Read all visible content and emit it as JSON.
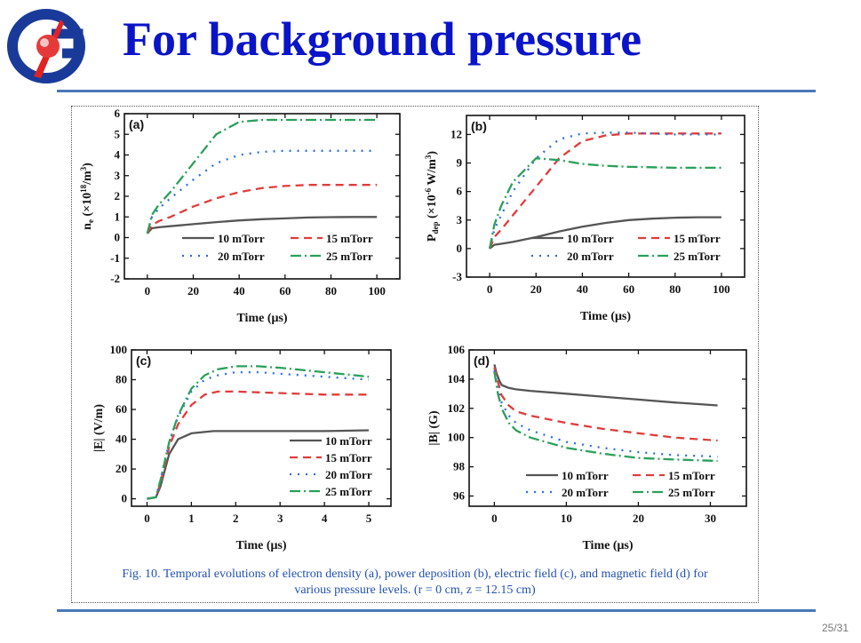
{
  "slide": {
    "title": "For background pressure",
    "caption_line1": "Fig. 10. Temporal evolutions of electron density (a), power deposition (b), electric field (c), and magnetic field (d) for",
    "caption_line2": "various pressure levels. (r = 0 cm, z = 12.15 cm)",
    "page_number": "25/31"
  },
  "colors": {
    "title": "#0a14c8",
    "rule": "#4a78b8",
    "caption": "#2250b4"
  },
  "chart_data": [
    {
      "id": "a",
      "type": "line",
      "panel_label": "(a)",
      "xlabel": "Time (μs)",
      "ylabel": "n_e (×10^18/m^3)",
      "xlim": [
        -10,
        110
      ],
      "ylim": [
        -2,
        6
      ],
      "xticks": [
        0,
        20,
        40,
        60,
        80,
        100
      ],
      "yticks": [
        -2,
        -1,
        0,
        1,
        2,
        3,
        4,
        5,
        6
      ],
      "series": [
        {
          "name": "10 mTorr",
          "color": "#555555",
          "dash": "",
          "x": [
            0,
            2,
            5,
            10,
            20,
            30,
            40,
            50,
            60,
            70,
            80,
            90,
            100
          ],
          "y": [
            0.2,
            0.45,
            0.5,
            0.55,
            0.65,
            0.75,
            0.83,
            0.89,
            0.93,
            0.97,
            0.99,
            1.0,
            1.0
          ]
        },
        {
          "name": "15 mTorr",
          "color": "#e03c3c",
          "dash": "9 6",
          "x": [
            0,
            2,
            5,
            10,
            20,
            30,
            40,
            50,
            60,
            70,
            80,
            90,
            100
          ],
          "y": [
            0.2,
            0.6,
            0.8,
            1.0,
            1.5,
            1.9,
            2.2,
            2.4,
            2.5,
            2.55,
            2.55,
            2.55,
            2.55
          ]
        },
        {
          "name": "20 mTorr",
          "color": "#2a6ee0",
          "dash": "2 7",
          "x": [
            0,
            2,
            5,
            10,
            20,
            30,
            40,
            50,
            60,
            70,
            80,
            90,
            100
          ],
          "y": [
            0.2,
            1.0,
            1.4,
            1.9,
            2.8,
            3.6,
            4.0,
            4.15,
            4.2,
            4.2,
            4.2,
            4.2,
            4.2
          ]
        },
        {
          "name": "25 mTorr",
          "color": "#2aa05a",
          "dash": "12 4 2 4",
          "x": [
            0,
            2,
            5,
            10,
            20,
            30,
            40,
            50,
            60,
            70,
            80,
            90,
            100
          ],
          "y": [
            0.2,
            1.1,
            1.6,
            2.2,
            3.6,
            5.0,
            5.6,
            5.7,
            5.7,
            5.7,
            5.7,
            5.7,
            5.7
          ]
        }
      ]
    },
    {
      "id": "b",
      "type": "line",
      "panel_label": "(b)",
      "xlabel": "Time (μs)",
      "ylabel": "P_dep (×10^-6 W/m^3)",
      "xlim": [
        -10,
        110
      ],
      "ylim": [
        -3,
        14
      ],
      "xticks": [
        0,
        20,
        40,
        60,
        80,
        100
      ],
      "yticks": [
        -3,
        0,
        3,
        6,
        9,
        12
      ],
      "series": [
        {
          "name": "10 mTorr",
          "color": "#555555",
          "dash": "",
          "x": [
            0,
            2,
            5,
            10,
            20,
            30,
            40,
            50,
            60,
            70,
            80,
            90,
            100
          ],
          "y": [
            0,
            0.4,
            0.5,
            0.7,
            1.2,
            1.8,
            2.3,
            2.7,
            3.0,
            3.15,
            3.25,
            3.3,
            3.3
          ]
        },
        {
          "name": "15 mTorr",
          "color": "#e03c3c",
          "dash": "9 6",
          "x": [
            0,
            2,
            5,
            10,
            20,
            30,
            40,
            50,
            60,
            70,
            80,
            90,
            100
          ],
          "y": [
            0,
            1.2,
            2.0,
            3.5,
            6.5,
            9.5,
            11.3,
            11.9,
            12.1,
            12.1,
            12.1,
            12.1,
            12.1
          ]
        },
        {
          "name": "20 mTorr",
          "color": "#2a6ee0",
          "dash": "2 7",
          "x": [
            0,
            2,
            5,
            10,
            20,
            30,
            40,
            50,
            60,
            70,
            80,
            90,
            100
          ],
          "y": [
            0,
            2.0,
            3.5,
            6.0,
            9.5,
            11.5,
            12.1,
            12.2,
            12.2,
            12.1,
            12.0,
            12.0,
            12.0
          ]
        },
        {
          "name": "25 mTorr",
          "color": "#2aa05a",
          "dash": "12 4 2 4",
          "x": [
            0,
            2,
            5,
            10,
            20,
            30,
            40,
            50,
            60,
            70,
            80,
            90,
            100
          ],
          "y": [
            0,
            2.5,
            4.5,
            7.0,
            9.5,
            9.3,
            8.9,
            8.7,
            8.6,
            8.55,
            8.5,
            8.5,
            8.5
          ]
        }
      ]
    },
    {
      "id": "c",
      "type": "line",
      "panel_label": "(c)",
      "xlabel": "Time (μs)",
      "ylabel": "|E| (V/m)",
      "xlim": [
        -0.35,
        5.5
      ],
      "ylim": [
        -5,
        100
      ],
      "xticks": [
        0,
        1,
        2,
        3,
        4,
        5
      ],
      "yticks": [
        0,
        20,
        40,
        60,
        80,
        100
      ],
      "series": [
        {
          "name": "10 mTorr",
          "color": "#555555",
          "dash": "",
          "x": [
            0,
            0.2,
            0.3,
            0.5,
            0.7,
            1.0,
            1.5,
            2,
            3,
            4,
            5
          ],
          "y": [
            0,
            1,
            8,
            30,
            40,
            44,
            45.5,
            45.5,
            45.5,
            45.5,
            46
          ]
        },
        {
          "name": "15 mTorr",
          "color": "#e03c3c",
          "dash": "9 6",
          "x": [
            0,
            0.2,
            0.3,
            0.5,
            0.7,
            1.0,
            1.3,
            1.6,
            2,
            3,
            4,
            5
          ],
          "y": [
            0,
            1,
            10,
            35,
            50,
            63,
            70,
            72,
            72,
            71,
            70,
            70
          ]
        },
        {
          "name": "20 mTorr",
          "color": "#2a6ee0",
          "dash": "2 7",
          "x": [
            0,
            0.2,
            0.3,
            0.5,
            0.7,
            1.0,
            1.3,
            1.6,
            2,
            2.5,
            3,
            4,
            5
          ],
          "y": [
            0,
            1,
            12,
            38,
            55,
            72,
            80,
            83,
            85,
            85,
            84,
            82,
            80
          ]
        },
        {
          "name": "25 mTorr",
          "color": "#2aa05a",
          "dash": "12 4 2 4",
          "x": [
            0,
            0.2,
            0.3,
            0.5,
            0.7,
            1.0,
            1.3,
            1.6,
            2,
            2.5,
            3,
            4,
            5
          ],
          "y": [
            0,
            1,
            12,
            38,
            56,
            74,
            83,
            87,
            89,
            89,
            88,
            85,
            82
          ]
        }
      ]
    },
    {
      "id": "d",
      "type": "line",
      "panel_label": "(d)",
      "xlabel": "Time (μs)",
      "ylabel": "|B| (G)",
      "xlim": [
        -3.5,
        35
      ],
      "ylim": [
        95.3,
        106
      ],
      "xticks": [
        0,
        10,
        20,
        30
      ],
      "yticks": [
        96,
        98,
        100,
        102,
        104,
        106
      ],
      "series": [
        {
          "name": "10 mTorr",
          "color": "#555555",
          "dash": "",
          "x": [
            0,
            0.3,
            0.7,
            1,
            2,
            3,
            5,
            10,
            15,
            20,
            25,
            31
          ],
          "y": [
            105,
            104.4,
            103.9,
            103.6,
            103.4,
            103.3,
            103.2,
            103.0,
            102.8,
            102.6,
            102.4,
            102.2
          ]
        },
        {
          "name": "15 mTorr",
          "color": "#e03c3c",
          "dash": "9 6",
          "x": [
            0,
            0.5,
            1,
            2,
            3,
            5,
            10,
            15,
            20,
            25,
            31
          ],
          "y": [
            104.8,
            103.8,
            102.9,
            102.2,
            101.8,
            101.5,
            101.0,
            100.6,
            100.3,
            100.0,
            99.8
          ]
        },
        {
          "name": "20 mTorr",
          "color": "#2a6ee0",
          "dash": "2 7",
          "x": [
            0,
            0.5,
            1,
            2,
            3,
            5,
            10,
            15,
            20,
            25,
            31
          ],
          "y": [
            104.6,
            103.4,
            102.4,
            101.5,
            101.0,
            100.5,
            99.7,
            99.3,
            99.0,
            98.8,
            98.7
          ]
        },
        {
          "name": "25 mTorr",
          "color": "#2aa05a",
          "dash": "12 4 2 4",
          "x": [
            0,
            0.5,
            1,
            2,
            3,
            5,
            10,
            15,
            20,
            25,
            31
          ],
          "y": [
            104.5,
            103.0,
            102.0,
            101.0,
            100.5,
            100.0,
            99.3,
            98.9,
            98.6,
            98.5,
            98.4
          ]
        }
      ]
    }
  ]
}
